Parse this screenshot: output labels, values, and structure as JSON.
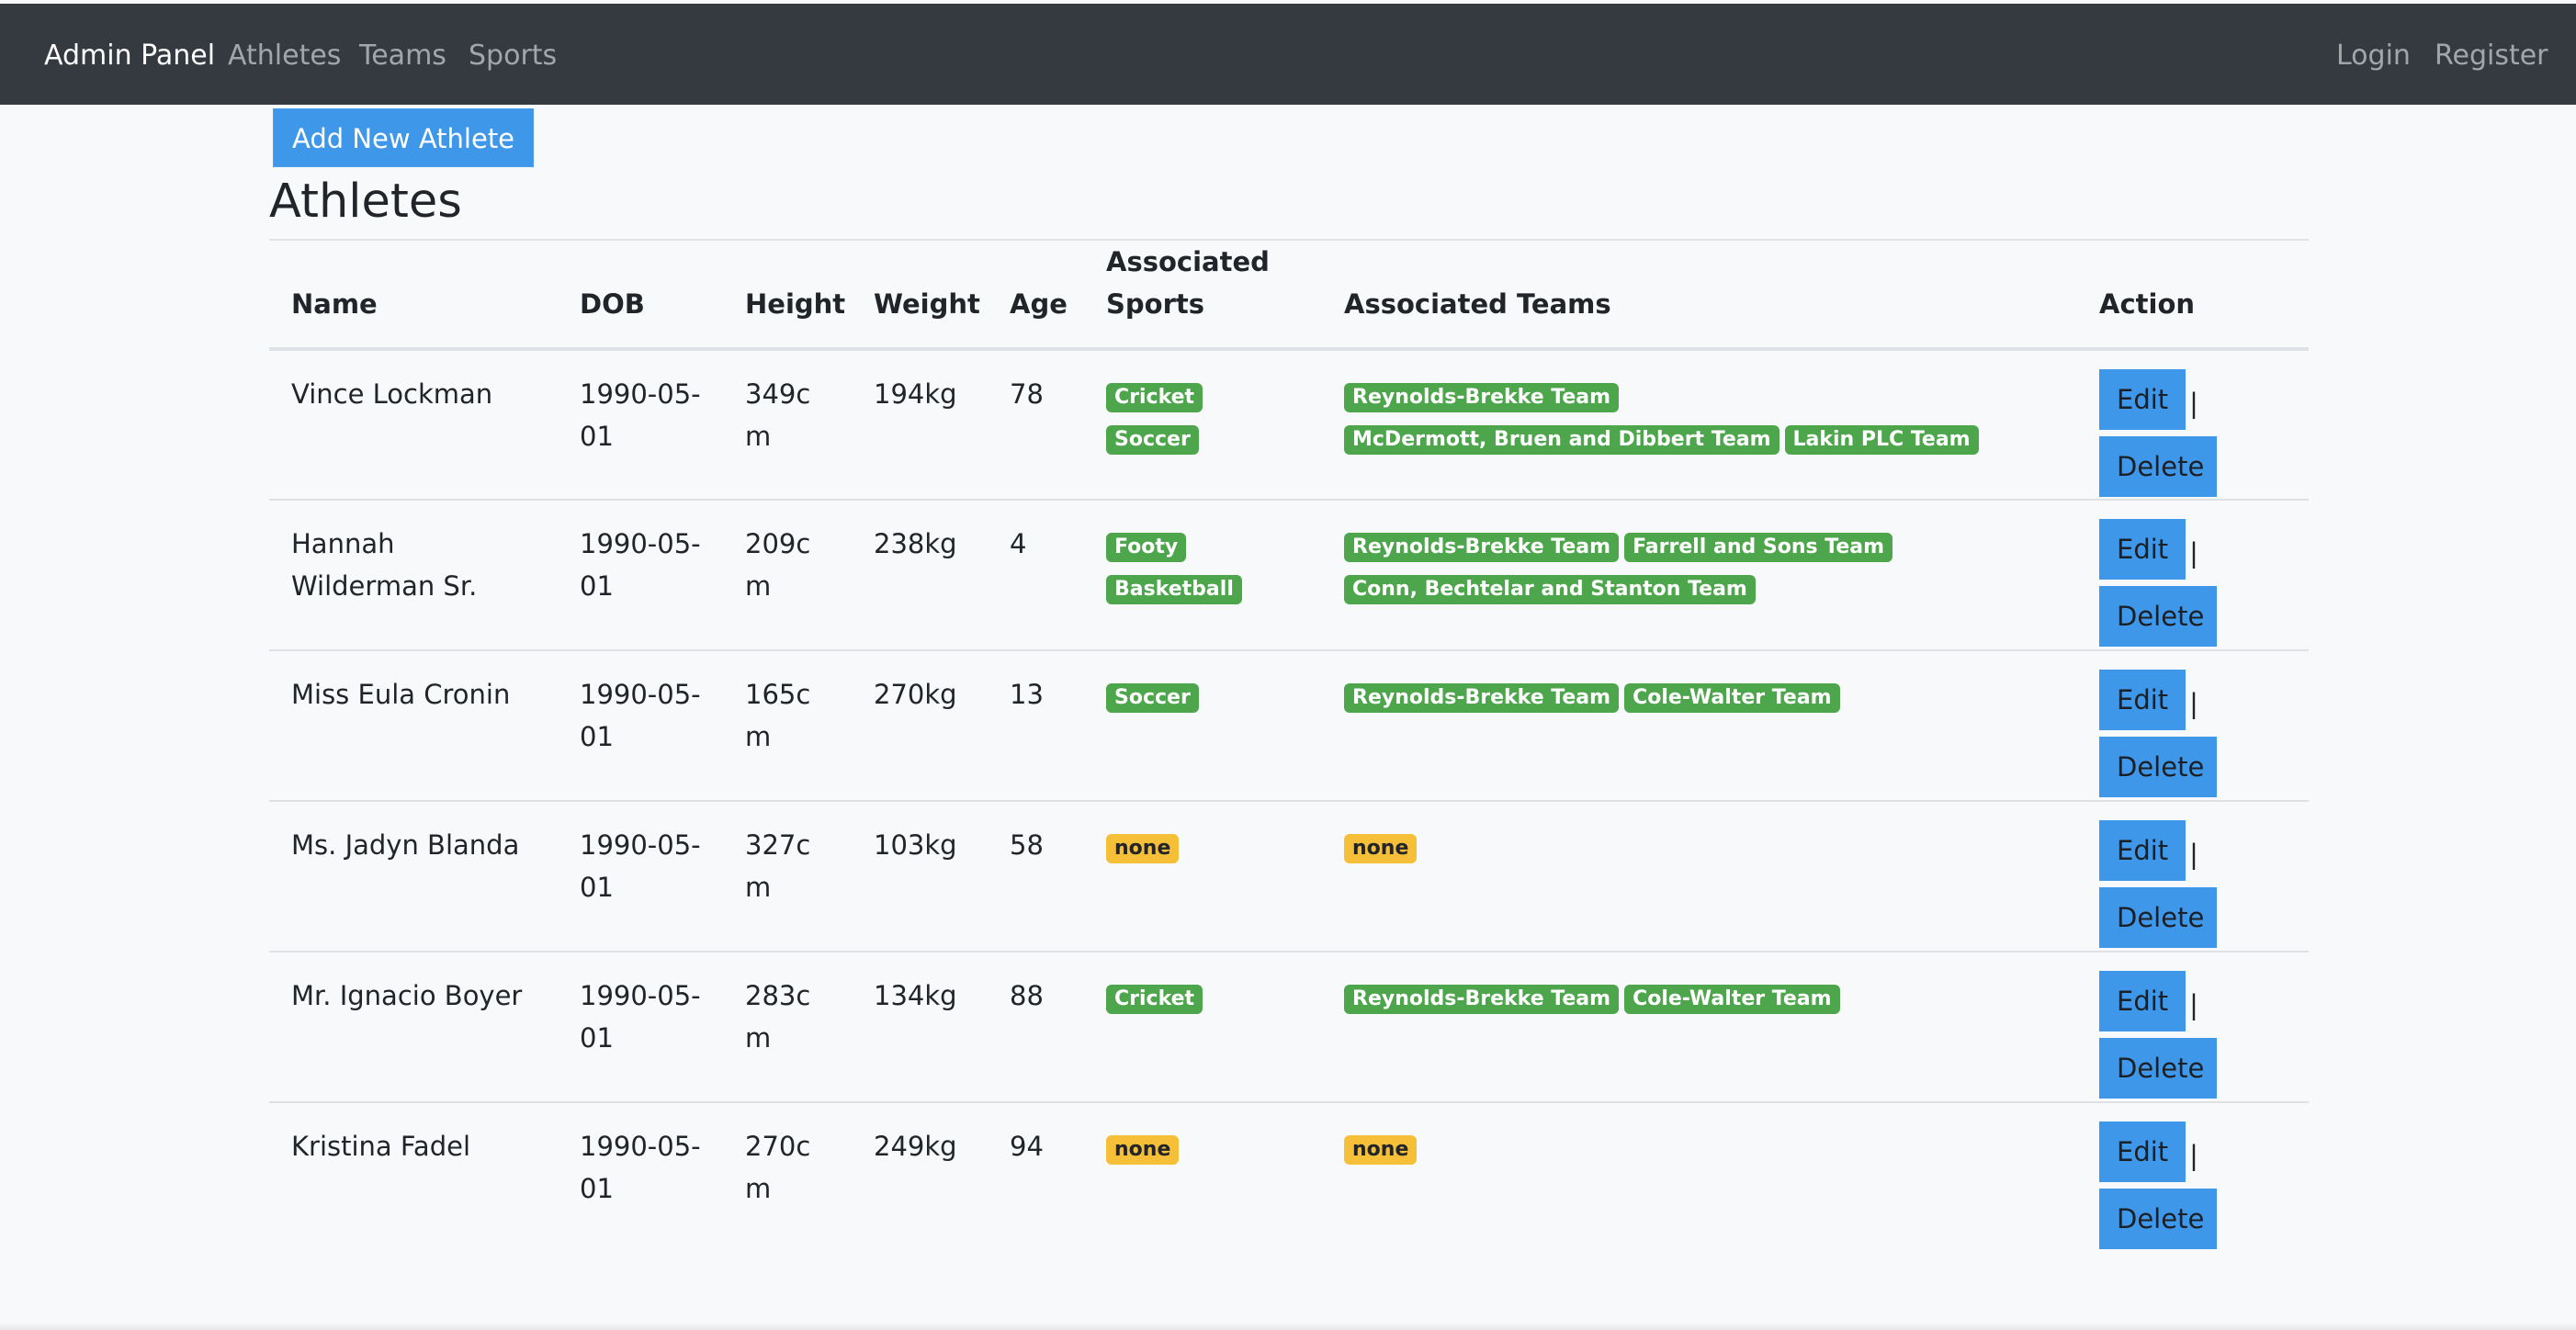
{
  "nav": {
    "brand": "Admin Panel",
    "links": [
      "Athletes",
      "Teams",
      "Sports"
    ],
    "right_links": [
      "Login",
      "Register"
    ]
  },
  "page": {
    "add_button": "Add New Athlete",
    "title": "Athletes"
  },
  "table": {
    "headers": [
      "Name",
      "DOB",
      "Height",
      "Weight",
      "Age",
      "Associated Sports",
      "Associated Teams",
      "Action"
    ],
    "edit_label": "Edit",
    "delete_label": "Delete",
    "separator": "|",
    "rows": [
      {
        "name": "Vince Lockman",
        "dob": "1990-05-01",
        "height": "349cm",
        "weight": "194kg",
        "age": "78",
        "sports": [
          "Cricket",
          "Soccer"
        ],
        "teams": [
          "Reynolds-Brekke Team",
          "McDermott, Bruen and Dibbert Team",
          "Lakin PLC Team"
        ]
      },
      {
        "name": "Hannah Wilderman Sr.",
        "dob": "1990-05-01",
        "height": "209cm",
        "weight": "238kg",
        "age": "4",
        "sports": [
          "Footy",
          "Basketball"
        ],
        "teams": [
          "Reynolds-Brekke Team",
          "Farrell and Sons Team",
          "Conn, Bechtelar and Stanton Team"
        ]
      },
      {
        "name": "Miss Eula Cronin",
        "dob": "1990-05-01",
        "height": "165cm",
        "weight": "270kg",
        "age": "13",
        "sports": [
          "Soccer"
        ],
        "teams": [
          "Reynolds-Brekke Team",
          "Cole-Walter Team"
        ]
      },
      {
        "name": "Ms. Jadyn Blanda",
        "dob": "1990-05-01",
        "height": "327cm",
        "weight": "103kg",
        "age": "58",
        "sports": [],
        "teams": []
      },
      {
        "name": "Mr. Ignacio Boyer",
        "dob": "1990-05-01",
        "height": "283cm",
        "weight": "134kg",
        "age": "88",
        "sports": [
          "Cricket"
        ],
        "teams": [
          "Reynolds-Brekke Team",
          "Cole-Walter Team"
        ]
      },
      {
        "name": "Kristina Fadel",
        "dob": "1990-05-01",
        "height": "270cm",
        "weight": "249kg",
        "age": "94",
        "sports": [],
        "teams": []
      }
    ],
    "none_label": "none"
  },
  "colors": {
    "navbar": "#343a40",
    "primary_button": "#3e97e8",
    "badge_success": "#4ea64c",
    "badge_warning": "#f6bf38",
    "page_background": "#f8f9fa"
  }
}
